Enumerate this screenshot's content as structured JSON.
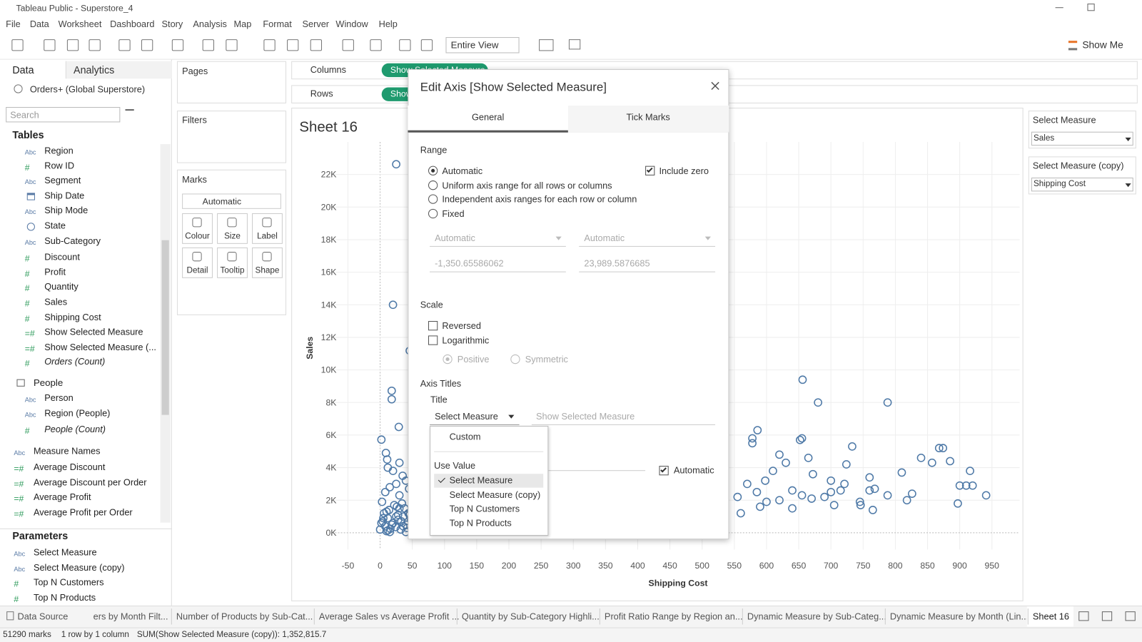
{
  "window": {
    "title": "Tableau Public - Superstore_4"
  },
  "menu": [
    "File",
    "Data",
    "Worksheet",
    "Dashboard",
    "Story",
    "Analysis",
    "Map",
    "Format",
    "Server",
    "Window",
    "Help"
  ],
  "toolbar": {
    "fit": "Entire View",
    "show_me": "Show Me"
  },
  "data_pane": {
    "tabs": [
      "Data",
      "Analytics"
    ],
    "source": "Orders+ (Global Superstore)",
    "search": "Search",
    "tables": "Tables",
    "fields": [
      {
        "icon": "Abc",
        "name": "Region"
      },
      {
        "icon": "#",
        "name": "Row ID"
      },
      {
        "icon": "Abc",
        "name": "Segment"
      },
      {
        "kind": "date",
        "name": "Ship Date"
      },
      {
        "icon": "Abc",
        "name": "Ship Mode"
      },
      {
        "kind": "geo",
        "name": "State"
      },
      {
        "icon": "Abc",
        "name": "Sub-Category"
      },
      {
        "icon": "#",
        "name": "Discount"
      },
      {
        "icon": "#",
        "name": "Profit"
      },
      {
        "icon": "#",
        "name": "Quantity"
      },
      {
        "icon": "#",
        "name": "Sales"
      },
      {
        "icon": "#",
        "name": "Shipping Cost"
      },
      {
        "icon": "=#",
        "name": "Show Selected Measure"
      },
      {
        "icon": "=#",
        "name": "Show Selected Measure (..."
      },
      {
        "icon": "#",
        "name": "Orders (Count)",
        "italic": true
      }
    ],
    "people": {
      "name": "People",
      "fields": [
        {
          "icon": "Abc",
          "name": "Person"
        },
        {
          "icon": "Abc",
          "name": "Region (People)"
        },
        {
          "icon": "#",
          "name": "People (Count)",
          "italic": true
        }
      ]
    },
    "measure_names": {
      "icon": "Abc",
      "name": "Measure Names"
    },
    "measures": [
      {
        "icon": "=#",
        "name": "Average Discount"
      },
      {
        "icon": "=#",
        "name": "Average Discount per Order"
      },
      {
        "icon": "=#",
        "name": "Average Profit"
      },
      {
        "icon": "=#",
        "name": "Average Profit per Order"
      }
    ],
    "parameters_heading": "Parameters",
    "parameters": [
      {
        "icon": "Abc",
        "name": "Select Measure"
      },
      {
        "icon": "Abc",
        "name": "Select Measure (copy)"
      },
      {
        "icon": "#",
        "name": "Top N Customers"
      },
      {
        "icon": "#",
        "name": "Top N Products"
      }
    ]
  },
  "shelves": {
    "pages": "Pages",
    "filters": "Filters",
    "marks": "Marks",
    "mark_type": "Automatic",
    "cards": [
      "Colour",
      "Size",
      "Label",
      "Detail",
      "Tooltip",
      "Shape"
    ],
    "columns": "Columns",
    "rows": "Rows",
    "pill": "Show Selected Measure"
  },
  "chart_data": {
    "type": "scatter",
    "title": "Sheet 16",
    "x_label": "Shipping Cost",
    "y_label": "Sales",
    "color": "#4e79a7",
    "grid": true,
    "xlim": [
      -70,
      993
    ],
    "ylim": [
      -1030,
      24000
    ],
    "xticks": [
      -50,
      0,
      50,
      100,
      150,
      200,
      250,
      300,
      350,
      400,
      450,
      500,
      550,
      600,
      650,
      700,
      750,
      800,
      850,
      900,
      950
    ],
    "yticks": [
      {
        "value": 0,
        "label": "0K"
      },
      {
        "value": 2000,
        "label": "2K"
      },
      {
        "value": 4000,
        "label": "4K"
      },
      {
        "value": 6000,
        "label": "6K"
      },
      {
        "value": 8000,
        "label": "8K"
      },
      {
        "value": 10000,
        "label": "10K"
      },
      {
        "value": 12000,
        "label": "12K"
      },
      {
        "value": 14000,
        "label": "14K"
      },
      {
        "value": 16000,
        "label": "16K"
      },
      {
        "value": 18000,
        "label": "18K"
      },
      {
        "value": 20000,
        "label": "20K"
      },
      {
        "value": 22000,
        "label": "22K"
      }
    ],
    "x": [
      25,
      20,
      46,
      18,
      18,
      29,
      2,
      9,
      11,
      30,
      12,
      20,
      35,
      40,
      25,
      15,
      45,
      8,
      30,
      50,
      3,
      22,
      38,
      10,
      28,
      5,
      33,
      18,
      42,
      12,
      2,
      25,
      48,
      6,
      36,
      15,
      30,
      55,
      0,
      8,
      16,
      24,
      32,
      40,
      4,
      12,
      20,
      28,
      36,
      44,
      14,
      26,
      34,
      46,
      50,
      52,
      10,
      40,
      656,
      680,
      788,
      586,
      578,
      578,
      655,
      652,
      733,
      868,
      874,
      840,
      857,
      885,
      916,
      810,
      724,
      760,
      665,
      900,
      910,
      920,
      897,
      941,
      826,
      818,
      788,
      768,
      745,
      746,
      721,
      700,
      690,
      670,
      655,
      640,
      620,
      600,
      585,
      570,
      555,
      610,
      630,
      598,
      672,
      705,
      640,
      590,
      560,
      620,
      700,
      715,
      760,
      765
    ],
    "y": [
      22630,
      14000,
      11180,
      8720,
      8200,
      6500,
      5720,
      4900,
      4500,
      4300,
      4000,
      3800,
      3500,
      3200,
      3000,
      2800,
      2700,
      2500,
      2300,
      2100,
      1900,
      1700,
      1500,
      1300,
      1100,
      900,
      700,
      500,
      300,
      150,
      600,
      1000,
      800,
      1200,
      400,
      50,
      1500,
      3900,
      200,
      400,
      250,
      350,
      200,
      500,
      700,
      900,
      600,
      800,
      1000,
      1200,
      1400,
      1600,
      1800,
      1100,
      600,
      300,
      100,
      50,
      9400,
      8000,
      8000,
      6300,
      5500,
      5800,
      5800,
      5700,
      5300,
      5200,
      5200,
      4600,
      4300,
      4400,
      3800,
      3700,
      4200,
      3400,
      4600,
      2900,
      2900,
      2900,
      1800,
      2300,
      2400,
      2000,
      2300,
      2700,
      1900,
      1700,
      3000,
      2500,
      2200,
      2100,
      2300,
      2600,
      2000,
      1900,
      2500,
      3000,
      2200,
      3800,
      4300,
      3200,
      3600,
      1700,
      1500,
      1600,
      1200,
      4800,
      3200,
      2600,
      2600,
      1400
    ]
  },
  "parameter_controls": [
    {
      "title": "Select Measure",
      "value": "Sales"
    },
    {
      "title": "Select Measure (copy)",
      "value": "Shipping Cost"
    }
  ],
  "dialog": {
    "title": "Edit Axis [Show Selected Measure]",
    "tabs": [
      "General",
      "Tick Marks"
    ],
    "active_tab": 0,
    "range": "Range",
    "range_options": [
      {
        "label": "Automatic",
        "selected": true
      },
      {
        "label": "Uniform axis range for all rows or columns",
        "selected": false
      },
      {
        "label": "Independent axis ranges for each row or column",
        "selected": false
      },
      {
        "label": "Fixed",
        "selected": false
      }
    ],
    "include_zero": {
      "label": "Include zero",
      "checked": true
    },
    "range_dropdowns": [
      "Automatic",
      "Automatic"
    ],
    "range_values": [
      "-1,350.65586062",
      "23,989.5876685"
    ],
    "scale": "Scale",
    "scale_options": [
      {
        "label": "Reversed",
        "checked": false
      },
      {
        "label": "Logarithmic",
        "checked": false
      }
    ],
    "log_options": [
      {
        "label": "Positive",
        "selected": true
      },
      {
        "label": "Symmetric",
        "selected": false
      }
    ],
    "axis_titles": "Axis Titles",
    "title_label": "Title",
    "title_source": "Select Measure",
    "title_placeholder": "Show Selected Measure",
    "subtitle_automatic": {
      "label": "Automatic",
      "checked": true
    },
    "menu": {
      "custom": "Custom",
      "heading": "Use Value",
      "values": [
        {
          "label": "Select Measure",
          "checked": true
        },
        {
          "label": "Select Measure (copy)",
          "checked": false
        },
        {
          "label": "Top N Customers",
          "checked": false
        },
        {
          "label": "Top N Products",
          "checked": false
        }
      ]
    }
  },
  "sheet_tabs": [
    "Data Source",
    "ers by Month Filt...",
    "Number of Products by Sub-Cat...",
    "Average Sales vs Average Profit ...",
    "Quantity by Sub-Category Highli...",
    "Profit Ratio Range by Region an...",
    "Dynamic Measure by Sub-Categ...",
    "Dynamic Measure by Month (Lin...",
    "Sheet 16"
  ],
  "active_sheet": 8,
  "status": [
    "51290 marks",
    "1 row by 1 column",
    "SUM(Show Selected Measure (copy)): 1,352,815.7"
  ]
}
